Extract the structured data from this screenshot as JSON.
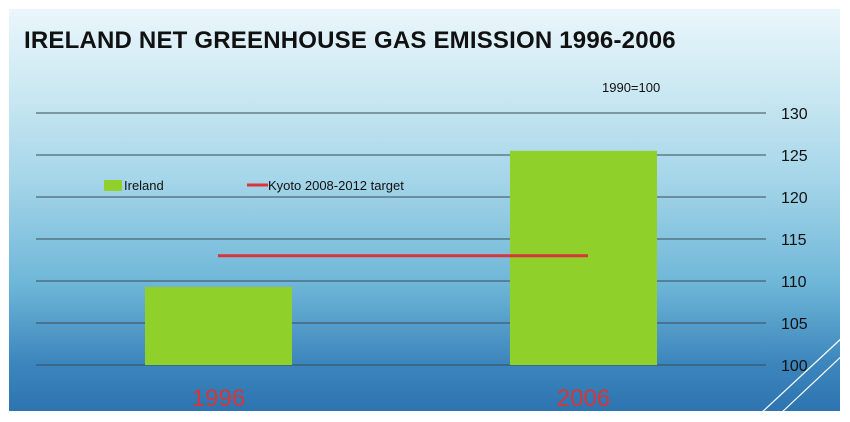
{
  "chart_data": {
    "type": "bar",
    "title": "IRELAND NET GREENHOUSE GAS EMISSION 1996-2006",
    "subtitle": "1990=100",
    "categories": [
      "1996",
      "2006"
    ],
    "series": [
      {
        "name": "Ireland",
        "values": [
          109.3,
          125.5
        ],
        "color": "#8fd12a"
      }
    ],
    "reference_line": {
      "name": "Kyoto 2008-2012 target",
      "value": 113,
      "color": "#d8363b"
    },
    "yticks": [
      100,
      105,
      110,
      115,
      120,
      125,
      130
    ],
    "ylim": [
      100,
      130
    ],
    "yaxis_position": "right",
    "grid": true,
    "legend_position": "top-left",
    "category_label_color": "#d4363a"
  }
}
